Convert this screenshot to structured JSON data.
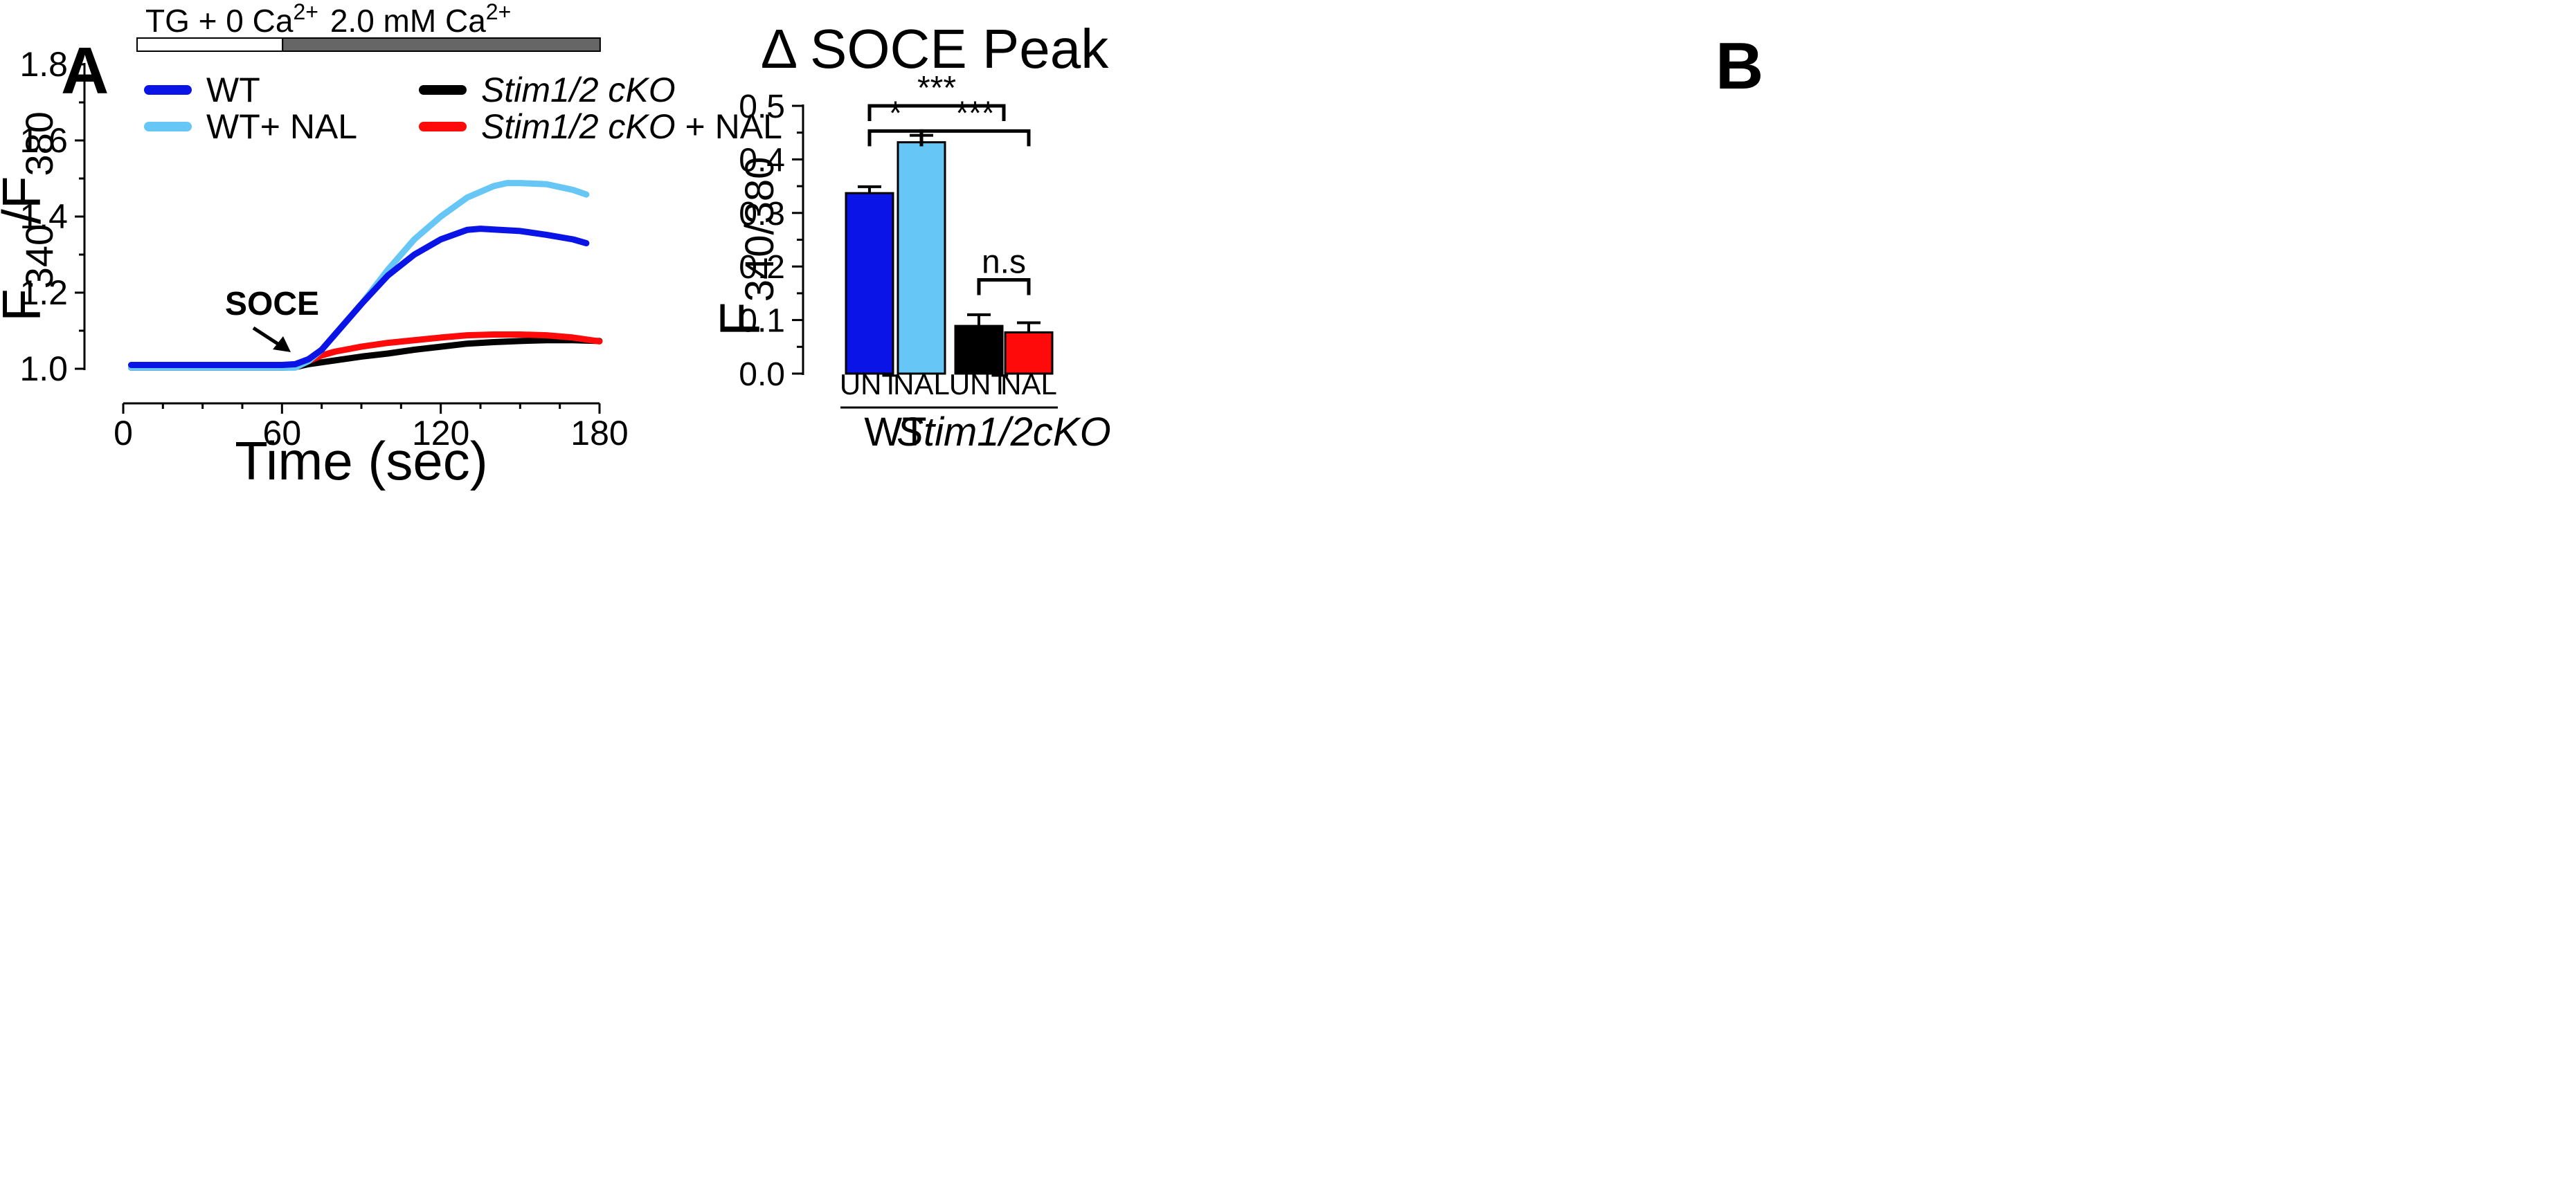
{
  "panels": {
    "a_label": "A",
    "b_label": "B"
  },
  "colors": {
    "wt": "#0a14e6",
    "wt_nal": "#66c6f5",
    "cko": "#000000",
    "cko_nal": "#ff0a0a",
    "bar_light": "#ffffff",
    "bar_dark": "#666666"
  },
  "chart_data": [
    {
      "id": "A",
      "type": "line",
      "title": "",
      "xlabel": "Time (sec)",
      "ylabel": "F340/F380",
      "ylabel_parts": {
        "main1": "F",
        "sub1": "340",
        "slash": "/",
        "main2": "F",
        "sub2": "380"
      },
      "xlim": [
        0,
        180
      ],
      "ylim": [
        1.0,
        1.8
      ],
      "xticks": [
        0,
        60,
        120,
        180
      ],
      "xtick_labels": [
        "0",
        "60",
        "120",
        "180"
      ],
      "yticks": [
        1.0,
        1.2,
        1.4,
        1.6,
        1.8
      ],
      "ytick_labels": [
        "1.0",
        "1.2",
        "1.4",
        "1.6",
        "1.8"
      ],
      "treatment_bar": [
        {
          "label": "TG + 0 Ca",
          "sup": "2+",
          "start": 0,
          "end": 55,
          "fill": "light"
        },
        {
          "label": "2.0 mM Ca",
          "sup": "2+",
          "start": 55,
          "end": 175,
          "fill": "dark"
        }
      ],
      "annotation": {
        "text": "SOCE",
        "x": 66,
        "y": 1.01
      },
      "legend": [
        {
          "label": "WT",
          "italic": false,
          "series": "WT"
        },
        {
          "label": "WT+ NAL",
          "italic": false,
          "series": "WT+ NAL"
        },
        {
          "label": "Stim1/2 cKO",
          "italic": true,
          "suffix": "",
          "series": "Stim1/2 cKO"
        },
        {
          "label": "Stim1/2 cKO",
          "italic": true,
          "suffix": " + NAL",
          "series": "Stim1/2 cKO + NAL"
        }
      ],
      "series": [
        {
          "name": "WT",
          "color_key": "wt",
          "x": [
            3,
            10,
            20,
            30,
            40,
            50,
            60,
            65,
            70,
            75,
            80,
            90,
            100,
            110,
            120,
            130,
            135,
            140,
            150,
            160,
            170,
            175
          ],
          "y": [
            1.01,
            1.01,
            1.01,
            1.01,
            1.01,
            1.01,
            1.01,
            1.012,
            1.025,
            1.05,
            1.09,
            1.17,
            1.245,
            1.3,
            1.34,
            1.365,
            1.368,
            1.366,
            1.362,
            1.352,
            1.34,
            1.33
          ]
        },
        {
          "name": "WT+ NAL",
          "color_key": "wt_nal",
          "x": [
            3,
            10,
            20,
            30,
            40,
            50,
            60,
            65,
            70,
            75,
            80,
            90,
            100,
            110,
            120,
            130,
            140,
            145,
            150,
            160,
            170,
            175
          ],
          "y": [
            1.003,
            1.003,
            1.003,
            1.003,
            1.003,
            1.003,
            1.003,
            1.003,
            1.02,
            1.05,
            1.09,
            1.17,
            1.26,
            1.34,
            1.4,
            1.45,
            1.48,
            1.488,
            1.488,
            1.485,
            1.47,
            1.458
          ]
        },
        {
          "name": "Stim1/2 cKO",
          "color_key": "cko",
          "x": [
            3,
            20,
            40,
            60,
            65,
            70,
            80,
            90,
            100,
            110,
            120,
            130,
            140,
            150,
            160,
            170,
            180
          ],
          "y": [
            1.003,
            1.003,
            1.003,
            1.003,
            1.004,
            1.012,
            1.022,
            1.032,
            1.04,
            1.05,
            1.058,
            1.066,
            1.07,
            1.073,
            1.075,
            1.075,
            1.073
          ]
        },
        {
          "name": "Stim1/2 cKO + NAL",
          "color_key": "cko_nal",
          "x": [
            3,
            20,
            40,
            60,
            65,
            70,
            75,
            80,
            90,
            100,
            110,
            120,
            130,
            140,
            150,
            160,
            170,
            180
          ],
          "y": [
            1.003,
            1.003,
            1.003,
            1.003,
            1.005,
            1.02,
            1.035,
            1.045,
            1.058,
            1.068,
            1.075,
            1.082,
            1.088,
            1.09,
            1.09,
            1.088,
            1.082,
            1.072
          ]
        }
      ]
    },
    {
      "id": "B",
      "type": "bar",
      "title": "Δ SOCE Peak",
      "xlabel": "",
      "ylabel": "F340/380",
      "ylabel_parts": {
        "main": "F",
        "sub": "340/380"
      },
      "ylim": [
        0.0,
        0.5
      ],
      "yticks": [
        0.0,
        0.1,
        0.2,
        0.3,
        0.4,
        0.5
      ],
      "ytick_labels": [
        "0.0",
        "0.1",
        "0.2",
        "0.3",
        "0.4",
        "0.5"
      ],
      "categories": [
        "UNT",
        "NAL",
        "UNT",
        "NAL"
      ],
      "values": [
        0.337,
        0.432,
        0.089,
        0.077
      ],
      "errors": [
        0.012,
        0.013,
        0.021,
        0.018
      ],
      "bar_color_keys": [
        "wt",
        "wt_nal",
        "cko",
        "cko_nal"
      ],
      "groups": [
        {
          "label": "WT",
          "italic": false,
          "bars": [
            0,
            1
          ]
        },
        {
          "label": "Stim1/2cKO",
          "italic": true,
          "bars": [
            2,
            3
          ]
        }
      ],
      "significance": [
        {
          "from": 0,
          "to": 1,
          "label": "*",
          "level": 0.453
        },
        {
          "from": 0,
          "to": 2.5,
          "label": "***",
          "level": 0.5
        },
        {
          "from": 1,
          "to": 3,
          "label": "***",
          "level": 0.453
        },
        {
          "from": 2,
          "to": 3,
          "label": "n.s",
          "level": 0.175
        }
      ]
    }
  ]
}
